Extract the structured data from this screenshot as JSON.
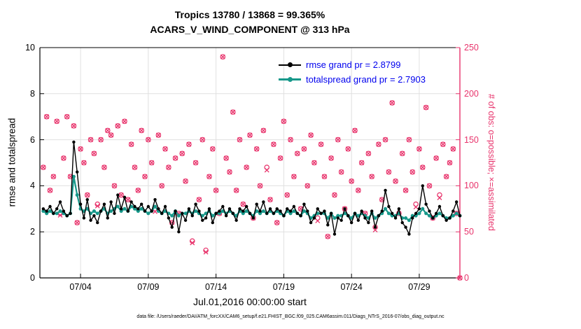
{
  "header": {
    "title": "Tropics 13780 / 13868 = 99.365%",
    "subtitle": "ACARS_V_WIND_COMPONENT @ 313 hPa"
  },
  "legend": {
    "text_color": "#0000ee",
    "items": [
      {
        "label": "rmse grand pr = 2.8799",
        "color": "#000000"
      },
      {
        "label": "totalspread grand pr = 2.7903",
        "color": "#17988a"
      }
    ]
  },
  "caption": "data file: /Users/raeder/DAI/ATM_forcXX/CAM6_setup/f.e21.FHIST_BGC.f09_025.CAM6assim.011/Diags_NTrS_2016-07/obs_diag_output.nc",
  "colors": {
    "magenta": "#e8346c",
    "teal": "#17988a",
    "legend_text": "#0000ee",
    "grid": "#e0e0e0",
    "axis_black": "#000000"
  },
  "chart_data": {
    "type": "line",
    "title": "Tropics 13780 / 13868 = 99.365%",
    "subtitle": "ACARS_V_WIND_COMPONENT @ 313 hPa",
    "xlabel": "Jul.01,2016 00:00:00 start",
    "ylabel_left": "rmse and totalspread",
    "ylabel_right": "# of obs: o=possible; ×=assimilated",
    "ylim_left": [
      0,
      10
    ],
    "ylim_right": [
      0,
      250
    ],
    "x_range_days": [
      0,
      31
    ],
    "x_tick_days": [
      3,
      8,
      13,
      18,
      23,
      28
    ],
    "x_tick_labels": [
      "07/04",
      "07/09",
      "07/14",
      "07/19",
      "07/24",
      "07/29"
    ],
    "yleft_ticks": [
      0,
      2,
      4,
      6,
      8,
      10
    ],
    "yright_ticks": [
      0,
      50,
      100,
      150,
      200,
      250
    ],
    "grid": true,
    "legend_position": "top-center-inside",
    "t_start_day": 0.25,
    "t_step_day": 0.25,
    "stats": {
      "region": "Tropics",
      "variable": "ACARS_V_WIND_COMPONENT",
      "level_hPa": 313,
      "assimilated_total": 13780,
      "possible_total": 13868,
      "assimilated_percent": 99.365,
      "rmse_grand_pr": 2.8799,
      "totalspread_grand_pr": 2.7903
    },
    "series": [
      {
        "name": "rmse",
        "axis": "left",
        "color": "#000000",
        "marker": "filled-circle",
        "values": [
          3.0,
          2.9,
          3.1,
          2.8,
          3.0,
          3.3,
          2.9,
          2.7,
          2.8,
          5.9,
          4.6,
          3.2,
          2.6,
          3.4,
          2.5,
          2.7,
          2.4,
          2.9,
          3.2,
          2.6,
          3.3,
          2.8,
          3.6,
          3.0,
          3.5,
          2.9,
          3.3,
          3.1,
          3.0,
          3.2,
          2.9,
          3.1,
          2.9,
          3.4,
          3.0,
          2.8,
          3.1,
          2.6,
          2.2,
          2.9,
          2.0,
          2.8,
          2.5,
          3.0,
          2.7,
          3.2,
          2.9,
          2.5,
          2.6,
          3.0,
          2.4,
          2.8,
          2.9,
          3.1,
          2.7,
          3.0,
          2.8,
          2.5,
          3.0,
          2.9,
          3.1,
          2.8,
          2.6,
          3.2,
          2.9,
          3.3,
          2.8,
          3.0,
          2.8,
          3.0,
          2.9,
          2.7,
          3.0,
          2.9,
          3.1,
          2.8,
          2.7,
          3.2,
          2.9,
          2.4,
          2.6,
          3.0,
          2.8,
          2.9,
          2.3,
          2.8,
          1.9,
          2.6,
          2.5,
          3.0,
          2.7,
          2.4,
          2.8,
          2.5,
          2.9,
          2.6,
          2.4,
          2.9,
          2.2,
          2.7,
          2.9,
          3.8,
          3.1,
          2.8,
          2.6,
          3.0,
          2.4,
          2.2,
          1.9,
          2.6,
          2.8,
          3.0,
          4.0,
          3.2,
          2.9,
          2.6,
          2.8,
          3.1,
          2.7,
          2.5,
          2.6,
          2.9,
          3.3,
          2.7
        ]
      },
      {
        "name": "totalspread",
        "axis": "left",
        "color": "#17988a",
        "marker": "filled-circle",
        "values": [
          2.9,
          2.8,
          2.9,
          2.8,
          2.8,
          2.9,
          2.8,
          2.7,
          2.8,
          4.4,
          3.6,
          3.0,
          2.9,
          3.0,
          2.8,
          2.9,
          2.8,
          2.9,
          3.0,
          2.8,
          2.9,
          3.0,
          3.1,
          2.9,
          3.0,
          2.9,
          3.1,
          3.0,
          2.9,
          3.0,
          2.9,
          2.8,
          2.9,
          3.1,
          2.9,
          2.8,
          2.9,
          2.8,
          2.7,
          2.9,
          2.7,
          2.8,
          2.8,
          2.9,
          2.8,
          2.9,
          2.8,
          2.7,
          2.8,
          2.9,
          2.7,
          2.8,
          2.8,
          2.9,
          2.8,
          2.9,
          2.8,
          2.7,
          2.9,
          2.8,
          2.9,
          2.8,
          2.7,
          2.9,
          2.8,
          2.9,
          2.8,
          2.9,
          2.8,
          2.9,
          2.8,
          2.7,
          2.9,
          2.8,
          2.9,
          2.8,
          2.7,
          2.9,
          2.8,
          2.6,
          2.7,
          2.8,
          2.8,
          2.8,
          2.6,
          2.8,
          2.6,
          2.7,
          2.7,
          2.8,
          2.7,
          2.6,
          2.8,
          2.7,
          2.8,
          2.7,
          2.6,
          2.8,
          2.6,
          2.7,
          2.8,
          3.0,
          2.8,
          2.7,
          2.7,
          2.8,
          2.6,
          2.6,
          2.5,
          2.7,
          2.7,
          2.8,
          3.0,
          2.8,
          2.7,
          2.6,
          2.7,
          2.8,
          2.7,
          2.6,
          2.6,
          2.7,
          2.8,
          2.7
        ]
      },
      {
        "name": "possible",
        "axis": "right",
        "color": "#e8346c",
        "marker": "open-circle",
        "values": [
          120,
          175,
          95,
          110,
          170,
          70,
          130,
          175,
          110,
          165,
          60,
          140,
          125,
          90,
          150,
          135,
          80,
          150,
          120,
          160,
          155,
          100,
          165,
          90,
          170,
          85,
          145,
          120,
          95,
          160,
          110,
          150,
          125,
          75,
          155,
          100,
          140,
          120,
          60,
          130,
          70,
          135,
          105,
          145,
          40,
          125,
          85,
          150,
          30,
          110,
          140,
          95,
          70,
          240,
          130,
          115,
          180,
          95,
          150,
          80,
          120,
          155,
          65,
          140,
          100,
          160,
          120,
          85,
          145,
          60,
          130,
          170,
          90,
          150,
          110,
          135,
          75,
          140,
          100,
          155,
          125,
          65,
          145,
          110,
          45,
          130,
          90,
          150,
          115,
          75,
          140,
          105,
          160,
          95,
          125,
          70,
          135,
          110,
          55,
          145,
          85,
          150,
          115,
          190,
          105,
          70,
          135,
          95,
          150,
          115,
          80,
          140,
          120,
          185,
          100,
          65,
          130,
          90,
          145,
          110,
          125,
          140,
          70,
          0
        ]
      },
      {
        "name": "assimilated",
        "axis": "right",
        "color": "#e8346c",
        "marker": "x-cross",
        "values": [
          120,
          175,
          95,
          110,
          170,
          68,
          130,
          175,
          110,
          165,
          60,
          140,
          125,
          90,
          150,
          135,
          78,
          150,
          120,
          160,
          155,
          100,
          165,
          90,
          170,
          85,
          145,
          120,
          95,
          160,
          110,
          150,
          125,
          72,
          155,
          100,
          140,
          120,
          60,
          130,
          70,
          135,
          105,
          145,
          38,
          125,
          85,
          150,
          28,
          110,
          140,
          95,
          70,
          240,
          130,
          115,
          180,
          95,
          150,
          80,
          120,
          155,
          65,
          140,
          100,
          160,
          117,
          85,
          145,
          60,
          130,
          170,
          90,
          150,
          110,
          135,
          75,
          140,
          100,
          155,
          125,
          62,
          145,
          110,
          45,
          130,
          90,
          150,
          115,
          75,
          140,
          105,
          160,
          95,
          125,
          70,
          135,
          110,
          52,
          145,
          85,
          150,
          115,
          190,
          105,
          70,
          135,
          95,
          150,
          115,
          77,
          140,
          120,
          185,
          100,
          65,
          130,
          87,
          145,
          110,
          125,
          140,
          70,
          0
        ]
      }
    ]
  }
}
